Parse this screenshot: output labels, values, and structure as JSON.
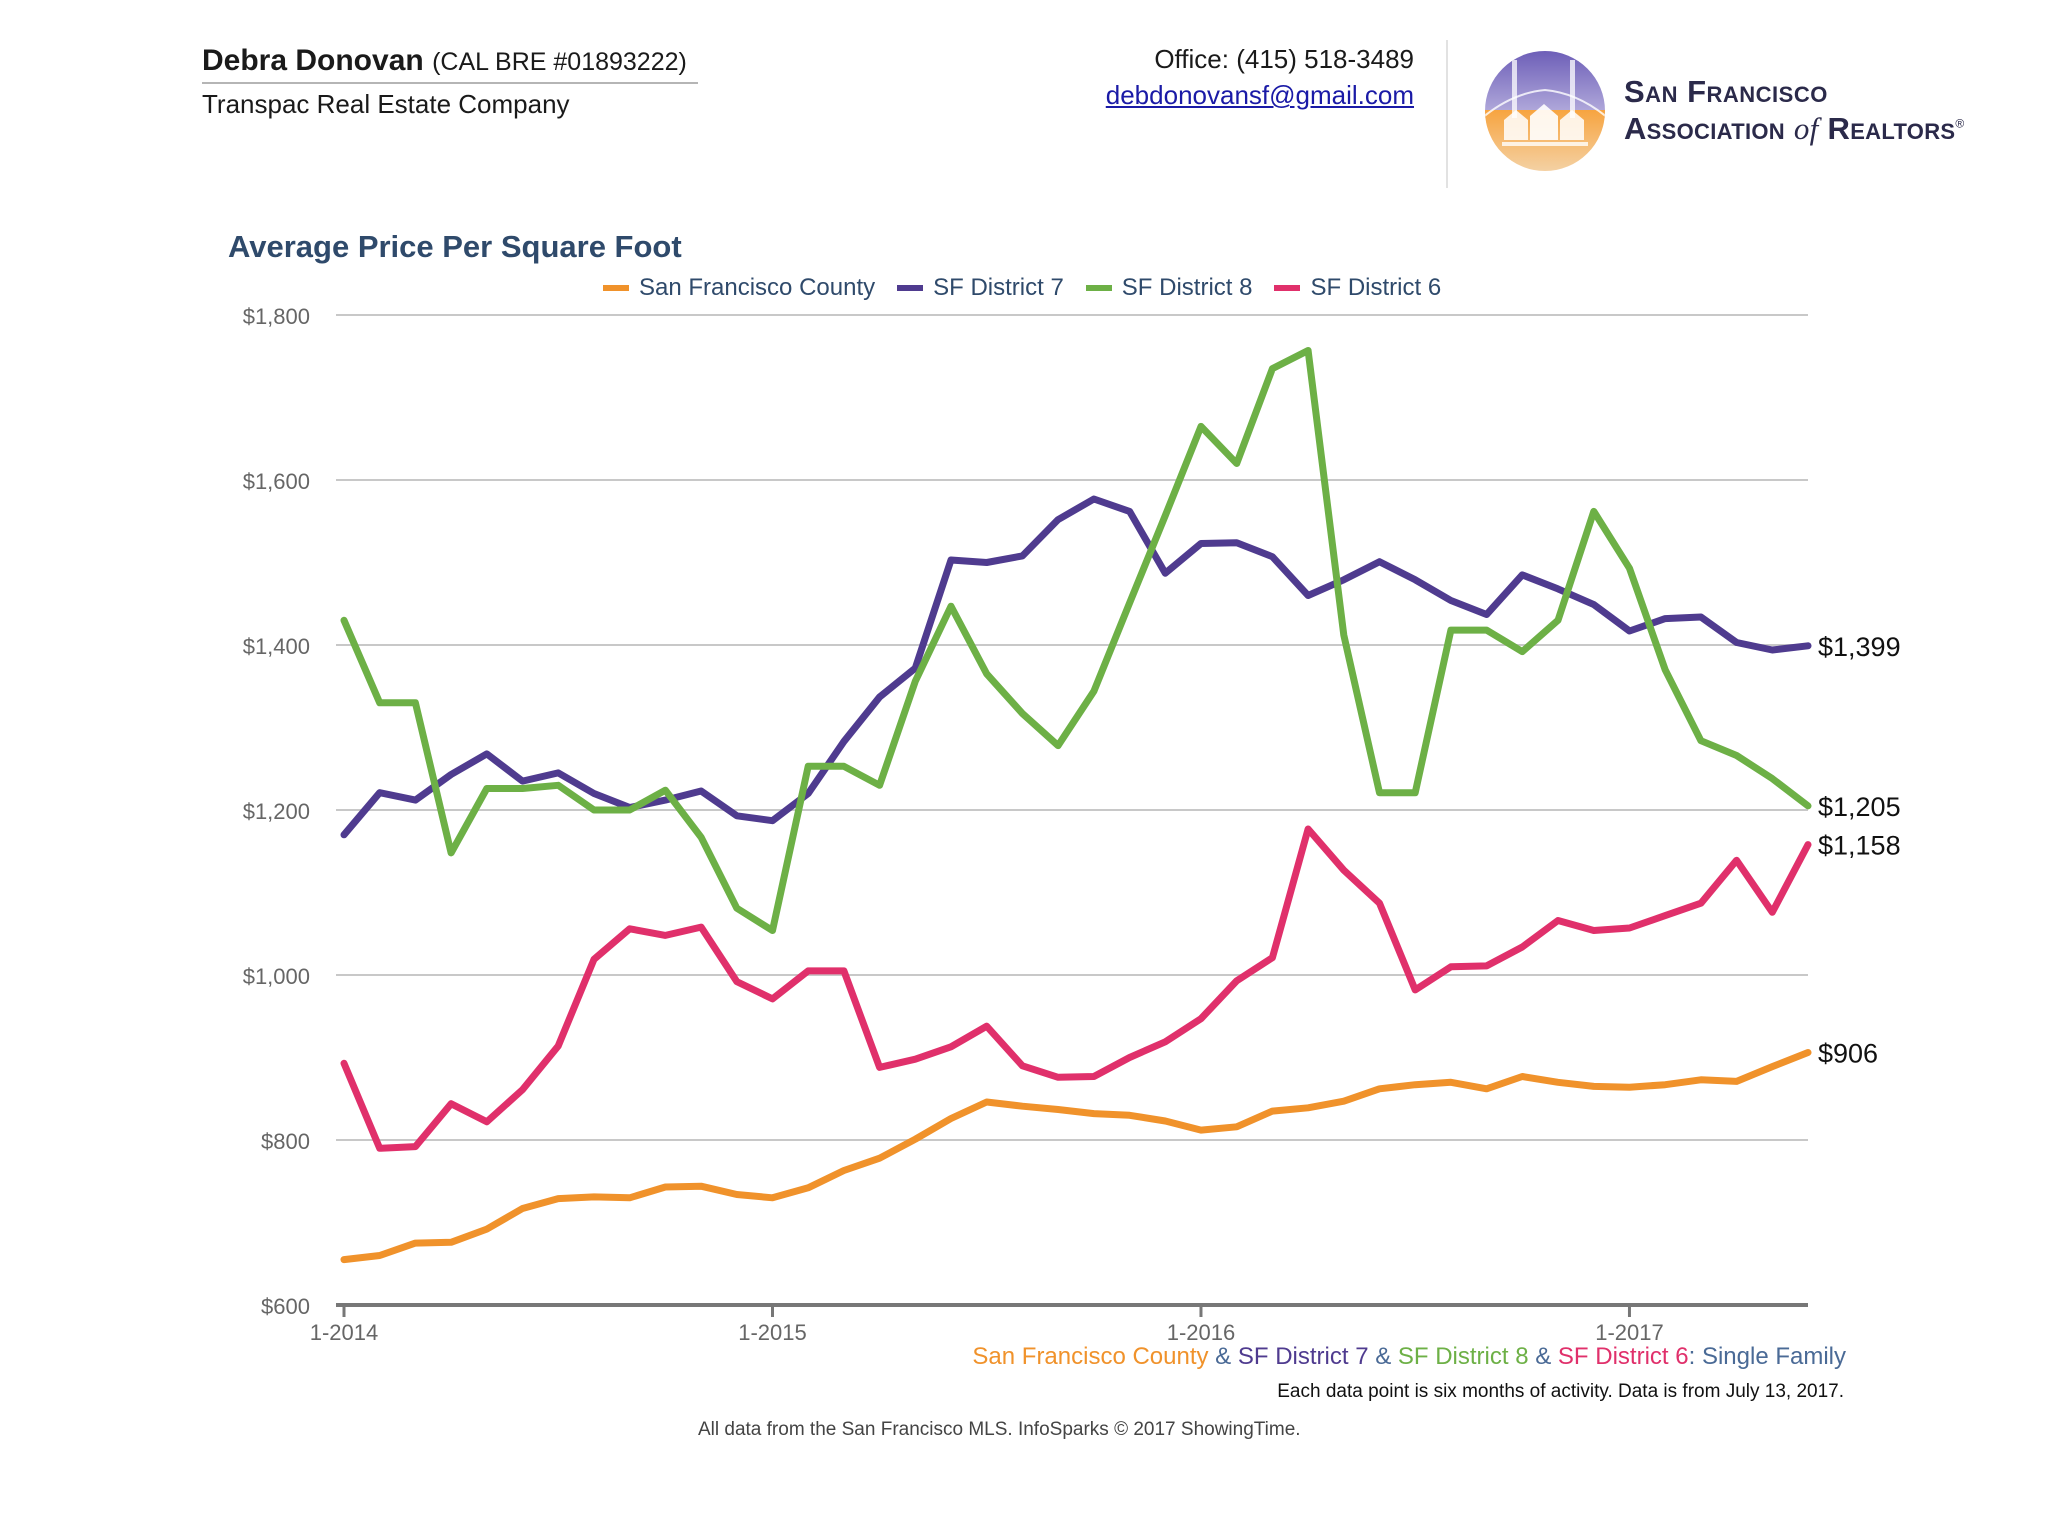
{
  "header": {
    "agent_name": "Debra Donovan",
    "license": "(CAL BRE #01893222)",
    "company": "Transpac Real Estate Company",
    "office": "Office: (415) 518-3489",
    "email": "debdonovansf@gmail.com",
    "logo_line1": "San Francisco",
    "logo_line2_a": "Association ",
    "logo_line2_b": "of",
    "logo_line2_c": " Realtors",
    "logo_reg": "®"
  },
  "footer": {
    "series_parts": [
      {
        "text": "San Francisco County",
        "color": "#f0922b"
      },
      {
        "text": " & ",
        "color": "#4a6a96"
      },
      {
        "text": "SF District 7",
        "color": "#4f3b8f"
      },
      {
        "text": " & ",
        "color": "#4a6a96"
      },
      {
        "text": "SF District 8",
        "color": "#6db046"
      },
      {
        "text": " & ",
        "color": "#4a6a96"
      },
      {
        "text": "SF District 6",
        "color": "#e0306b"
      },
      {
        "text": ": Single Family",
        "color": "#4a6a96"
      }
    ],
    "note": "Each data point is six months of activity. Data is from July 13, 2017.",
    "source": "All data from the San Francisco MLS. InfoSparks © 2017 ShowingTime."
  },
  "chart_data": {
    "type": "line",
    "title": "Average Price Per Square Foot",
    "ylim": [
      600,
      1800
    ],
    "yticks": [
      600,
      800,
      1000,
      1200,
      1400,
      1600,
      1800
    ],
    "ytick_labels": [
      "$600",
      "$800",
      "$1,000",
      "$1,200",
      "$1,400",
      "$1,600",
      "$1,800"
    ],
    "xticks": [
      {
        "label": "1-2014",
        "index": 0
      },
      {
        "label": "1-2015",
        "index": 12
      },
      {
        "label": "1-2016",
        "index": 24
      },
      {
        "label": "1-2017",
        "index": 36
      }
    ],
    "x": [
      "1-2014",
      "2-2014",
      "3-2014",
      "4-2014",
      "5-2014",
      "6-2014",
      "7-2014",
      "8-2014",
      "9-2014",
      "10-2014",
      "11-2014",
      "12-2014",
      "1-2015",
      "2-2015",
      "3-2015",
      "4-2015",
      "5-2015",
      "6-2015",
      "7-2015",
      "8-2015",
      "9-2015",
      "10-2015",
      "11-2015",
      "12-2015",
      "1-2016",
      "2-2016",
      "3-2016",
      "4-2016",
      "5-2016",
      "6-2016",
      "7-2016",
      "8-2016",
      "9-2016",
      "10-2016",
      "11-2016",
      "12-2016",
      "1-2017",
      "2-2017",
      "3-2017",
      "4-2017",
      "5-2017",
      "6-2017"
    ],
    "grid": true,
    "legend_position": "top",
    "series": [
      {
        "name": "San Francisco County",
        "color": "#f0922b",
        "values": [
          655,
          660,
          675,
          676,
          692,
          717,
          729,
          731,
          730,
          743,
          744,
          734,
          730,
          742,
          763,
          778,
          801,
          826,
          846,
          841,
          837,
          832,
          830,
          823,
          812,
          816,
          835,
          839,
          847,
          862,
          867,
          870,
          862,
          877,
          870,
          865,
          864,
          867,
          873,
          871,
          889,
          906
        ],
        "end_label": "$906"
      },
      {
        "name": "SF District 7",
        "color": "#4f3b8f",
        "values": [
          1170,
          1221,
          1212,
          1243,
          1268,
          1235,
          1245,
          1220,
          1203,
          1212,
          1223,
          1193,
          1187,
          1220,
          1283,
          1337,
          1372,
          1503,
          1500,
          1508,
          1552,
          1577,
          1562,
          1487,
          1523,
          1524,
          1507,
          1460,
          1479,
          1501,
          1479,
          1454,
          1437,
          1485,
          1468,
          1449,
          1417,
          1432,
          1434,
          1403,
          1394,
          1399
        ],
        "end_label": "$1,399"
      },
      {
        "name": "SF District 8",
        "color": "#6db046",
        "values": [
          1430,
          1330,
          1330,
          1148,
          1226,
          1226,
          1230,
          1200,
          1200,
          1224,
          1167,
          1081,
          1054,
          1253,
          1253,
          1230,
          1356,
          1447,
          1365,
          1317,
          1278,
          1344,
          1451,
          1557,
          1665,
          1620,
          1735,
          1757,
          1412,
          1221,
          1221,
          1418,
          1418,
          1392,
          1430,
          1562,
          1493,
          1370,
          1284,
          1266,
          1238,
          1205
        ],
        "end_label": "$1,205"
      },
      {
        "name": "SF District 6",
        "color": "#e0306b",
        "values": [
          893,
          790,
          792,
          844,
          822,
          861,
          914,
          1019,
          1056,
          1048,
          1058,
          992,
          971,
          1005,
          1005,
          888,
          898,
          913,
          938,
          890,
          876,
          877,
          900,
          919,
          947,
          993,
          1021,
          1177,
          1127,
          1087,
          982,
          1010,
          1011,
          1034,
          1066,
          1054,
          1057,
          1072,
          1087,
          1139,
          1076,
          1158
        ],
        "end_label": "$1,158"
      }
    ]
  }
}
